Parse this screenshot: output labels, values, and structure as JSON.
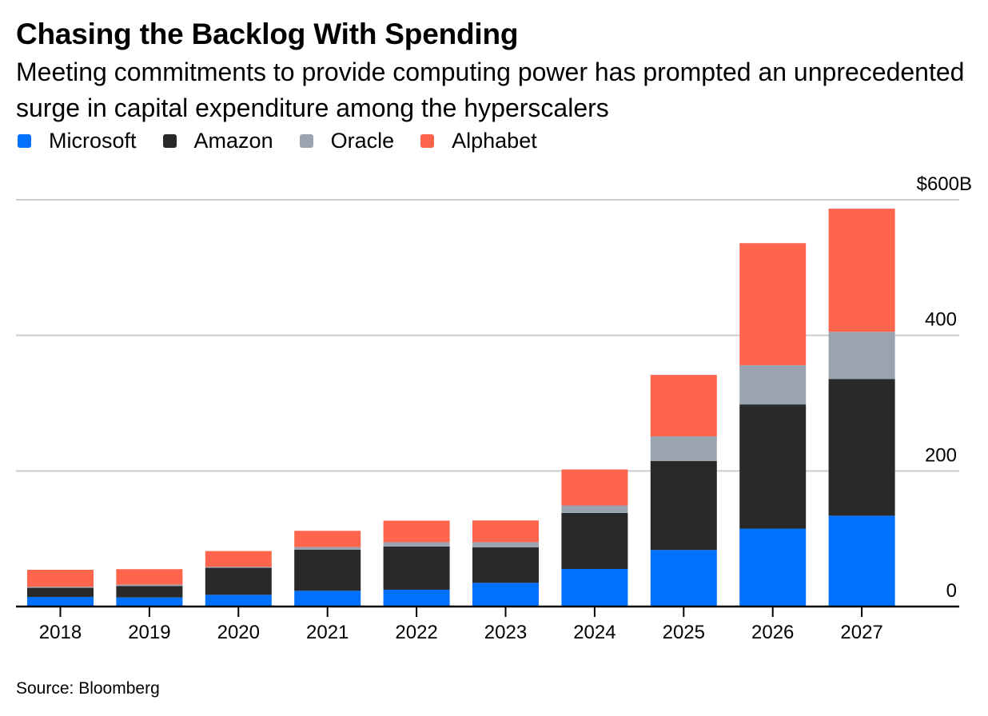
{
  "title": "Chasing the Backlog With Spending",
  "subtitle": "Meeting commitments to provide computing power has prompted an unprecedented surge in capital expenditure among the hyperscalers",
  "source": "Source: Bloomberg",
  "legend": [
    {
      "name": "Microsoft",
      "color": "#0070ff"
    },
    {
      "name": "Amazon",
      "color": "#292929"
    },
    {
      "name": "Oracle",
      "color": "#9aa4b0"
    },
    {
      "name": "Alphabet",
      "color": "#ff654d"
    }
  ],
  "chart_data": {
    "type": "bar",
    "stacked": true,
    "title": "Chasing the Backlog With Spending",
    "subtitle": "Meeting commitments to provide computing power has prompted an unprecedented surge in capital expenditure among the hyperscalers",
    "xlabel": "",
    "ylabel": "",
    "categories": [
      "2018",
      "2019",
      "2020",
      "2021",
      "2022",
      "2023",
      "2024",
      "2025",
      "2026",
      "2027"
    ],
    "series": [
      {
        "name": "Microsoft",
        "color": "#0070ff",
        "values": [
          14.2,
          13.4,
          17.3,
          23.2,
          24.8,
          35.0,
          55.4,
          83.4,
          114.9,
          134.0
        ]
      },
      {
        "name": "Amazon",
        "color": "#292929",
        "values": [
          13.4,
          16.9,
          39.8,
          60.5,
          63.7,
          52.3,
          82.6,
          131.3,
          183.2,
          201.7
        ]
      },
      {
        "name": "Oracle",
        "color": "#9aa4b0",
        "values": [
          1.5,
          2.0,
          1.5,
          4.0,
          6.4,
          7.5,
          11.1,
          36.2,
          57.8,
          69.6
        ]
      },
      {
        "name": "Alphabet",
        "color": "#ff654d",
        "values": [
          25.1,
          22.8,
          23.2,
          24.0,
          31.8,
          32.2,
          53.1,
          90.8,
          180.1,
          181.6
        ]
      }
    ],
    "ylim": [
      0,
      600
    ],
    "yticks": [
      0,
      200,
      400,
      600
    ],
    "ytick_labels": [
      "0",
      "200",
      "400",
      "$600B"
    ],
    "y_axis_position": "right",
    "grid": true,
    "legend_position": "top-left",
    "units": "USD billions"
  }
}
